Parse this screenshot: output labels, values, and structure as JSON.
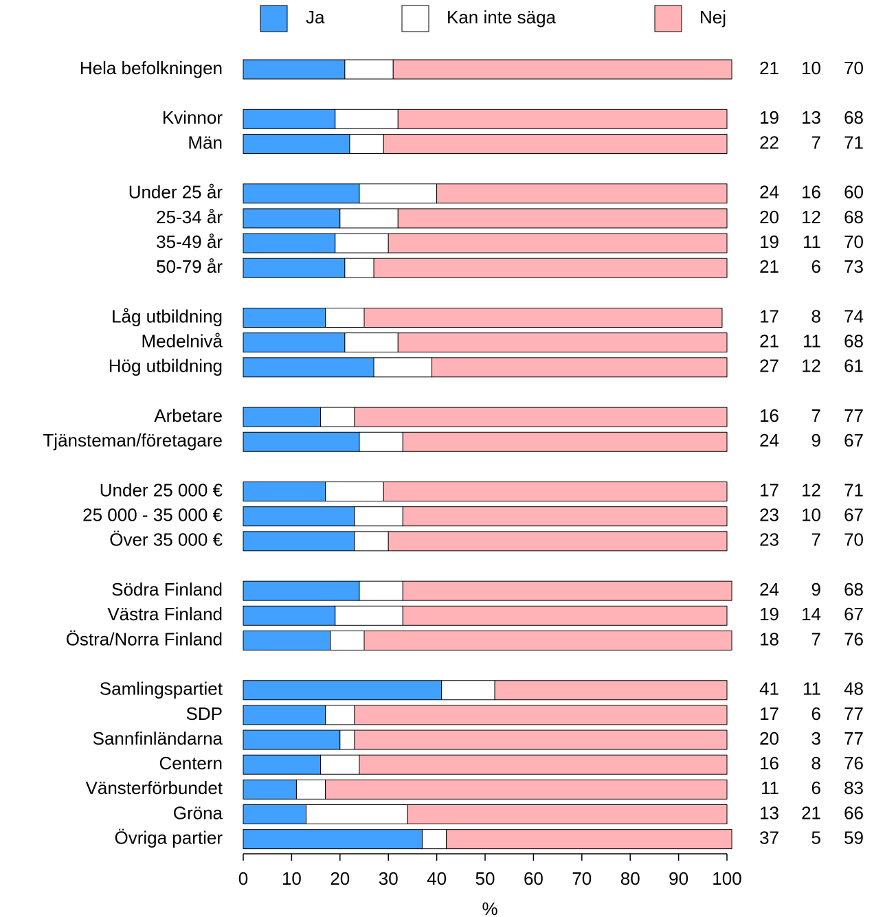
{
  "chart_data": {
    "type": "stacked_bar_horizontal",
    "xlabel": "%",
    "xlim": [
      0,
      100
    ],
    "xticks": [
      0,
      10,
      20,
      30,
      40,
      50,
      60,
      70,
      80,
      90,
      100
    ],
    "legend": "top",
    "categories": [
      "Hela befolkningen",
      null,
      "Kvinnor",
      "Män",
      null,
      "Under 25 år",
      "25-34 år",
      "35-49 år",
      "50-79 år",
      null,
      "Låg utbildning",
      "Medelnivå",
      "Hög utbildning",
      null,
      "Arbetare",
      "Tjänsteman/företagare",
      null,
      "Under 25 000 €",
      "25 000 - 35 000 €",
      "Över 35 000 €",
      null,
      "Södra Finland",
      "Västra Finland",
      "Östra/Norra Finland",
      null,
      "Samlingspartiet",
      "SDP",
      "Sannfinländarna",
      "Centern",
      "Vänsterförbundet",
      "Gröna",
      "Övriga partier"
    ],
    "series": [
      {
        "name": "Ja",
        "color": "#42a0ff",
        "values": [
          21,
          null,
          19,
          22,
          null,
          24,
          20,
          19,
          21,
          null,
          17,
          21,
          27,
          null,
          16,
          24,
          null,
          17,
          23,
          23,
          null,
          24,
          19,
          18,
          null,
          41,
          17,
          20,
          16,
          11,
          13,
          37
        ]
      },
      {
        "name": "Kan inte säga",
        "color": "#ffffff",
        "values": [
          10,
          null,
          13,
          7,
          null,
          16,
          12,
          11,
          6,
          null,
          8,
          11,
          12,
          null,
          7,
          9,
          null,
          12,
          10,
          7,
          null,
          9,
          14,
          7,
          null,
          11,
          6,
          3,
          8,
          6,
          21,
          5
        ]
      },
      {
        "name": "Nej",
        "color": "#ffb3b6",
        "values": [
          70,
          null,
          68,
          71,
          null,
          60,
          68,
          70,
          73,
          null,
          74,
          68,
          61,
          null,
          77,
          67,
          null,
          71,
          67,
          70,
          null,
          68,
          67,
          76,
          null,
          48,
          77,
          77,
          76,
          83,
          66,
          59
        ]
      }
    ]
  }
}
